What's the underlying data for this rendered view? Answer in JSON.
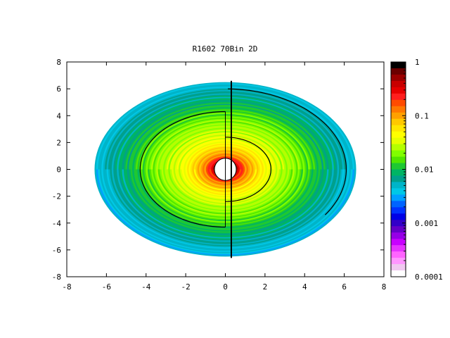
{
  "chart_data": {
    "type": "heatmap",
    "title": "R1602 70Bin 2D",
    "xlabel": "",
    "ylabel": "",
    "xlim": [
      -8,
      8
    ],
    "ylim": [
      -8,
      8
    ],
    "xticks": [
      "-8",
      "-6",
      "-4",
      "-2",
      "0",
      "2",
      "4",
      "6",
      "8"
    ],
    "yticks": [
      "-8",
      "-6",
      "-4",
      "-2",
      "0",
      "2",
      "4",
      "6",
      "8"
    ],
    "grid": false,
    "colorbar": {
      "scale": "log",
      "range": [
        0.0001,
        1
      ],
      "tick_labels": [
        "1",
        "0.1",
        "0.01",
        "0.001",
        "0.0001"
      ],
      "colors": [
        "#000000",
        "#6b0000",
        "#9b0000",
        "#c80000",
        "#e60000",
        "#ff1e1e",
        "#ff4b00",
        "#ff7800",
        "#ffa000",
        "#ffc800",
        "#ffe600",
        "#ffff00",
        "#e6ff00",
        "#b4ff00",
        "#80ff00",
        "#50e600",
        "#1ec832",
        "#00b464",
        "#00a08c",
        "#00b4c8",
        "#00c8e6",
        "#00a0ff",
        "#0064ff",
        "#0032ff",
        "#0000e6",
        "#3200c8",
        "#6400c8",
        "#9600e6",
        "#c800ff",
        "#e632ff",
        "#ff64ff",
        "#ff96ff",
        "#f0c8f0",
        "#ffffff"
      ]
    },
    "disk": {
      "inner_radius": 0.55,
      "outer_radius_x": 6.6,
      "outer_radius_y": 6.5,
      "log10_values_by_radius": [
        [
          0.55,
          -0.3
        ],
        [
          1.0,
          -0.8
        ],
        [
          1.5,
          -1.1
        ],
        [
          2.0,
          -1.3
        ],
        [
          2.5,
          -1.45
        ],
        [
          3.0,
          -1.55
        ],
        [
          3.5,
          -1.65
        ],
        [
          4.0,
          -1.75
        ],
        [
          4.5,
          -1.9
        ],
        [
          5.0,
          -2.05
        ],
        [
          5.5,
          -2.15
        ],
        [
          6.0,
          -2.25
        ],
        [
          6.5,
          -2.35
        ]
      ]
    }
  }
}
